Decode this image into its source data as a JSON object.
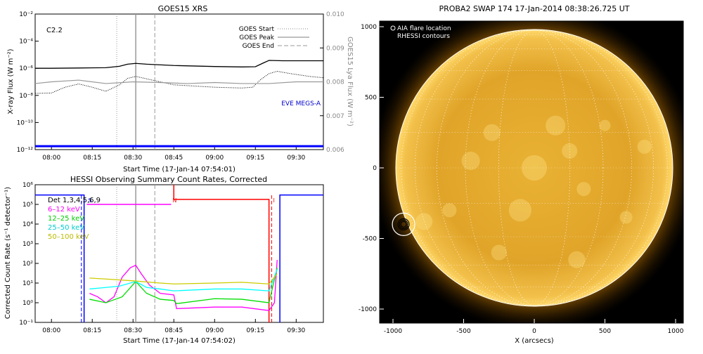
{
  "colors": {
    "goes_flux": "#000000",
    "lya": "#999999",
    "eve": "#0000ff",
    "attenuator": "#0000ff",
    "saa": "#ff0000",
    "black_band": "#000000",
    "e6_12": "#ff00ff",
    "e12_25": "#00dd00",
    "e25_50": "#00ffff",
    "e50_100": "#cccc00",
    "sun_limb": "#ffffff",
    "sun_core": "#ffd650",
    "sun_edge": "#e8a000"
  },
  "chart_data": [
    {
      "type": "line",
      "title": "GOES15 XRS",
      "xlabel": "Start Time (17-Jan-14 07:54:01)",
      "ylabel": "X-ray Flux (W m⁻²)",
      "y2label": "GOES15 Lya Flux (W m⁻²)",
      "x_range": [
        "07:54",
        "09:40"
      ],
      "x_ticks": [
        "08:00",
        "08:15",
        "08:30",
        "08:45",
        "09:00",
        "09:15",
        "09:30"
      ],
      "y_scale": "log",
      "ylim": [
        1e-12,
        0.01
      ],
      "y_ticks": [
        "10⁻¹²",
        "10⁻¹⁰",
        "10⁻⁸",
        "10⁻⁶",
        "10⁻⁴",
        "10⁻²"
      ],
      "y2lim": [
        0.006,
        0.01
      ],
      "y2_ticks": [
        "0.006",
        "0.007",
        "0.008",
        "0.009",
        "0.010"
      ],
      "annotation": "C2.2",
      "legend": [
        {
          "label": "GOES Start",
          "style": "dotted",
          "time": "08:24"
        },
        {
          "label": "GOES Peak",
          "style": "solid",
          "time": "08:31"
        },
        {
          "label": "GOES End",
          "style": "dashed",
          "time": "08:38"
        }
      ],
      "eve_label": "EVE MEGS-A",
      "series": [
        {
          "key": "long",
          "x": [
            "07:54",
            "08:00",
            "08:10",
            "08:20",
            "08:25",
            "08:28",
            "08:31",
            "08:35",
            "08:45",
            "09:00",
            "09:10",
            "09:15",
            "09:18",
            "09:20",
            "09:25",
            "09:40"
          ],
          "y": [
            1e-06,
            1e-06,
            1.05e-06,
            1.1e-06,
            1.4e-06,
            2e-06,
            2.3e-06,
            2e-06,
            1.6e-06,
            1.35e-06,
            1.25e-06,
            1.3e-06,
            2.5e-06,
            3.8e-06,
            3.6e-06,
            3.6e-06
          ]
        },
        {
          "key": "short",
          "x": [
            "07:54",
            "08:00",
            "08:05",
            "08:10",
            "08:15",
            "08:20",
            "08:25",
            "08:28",
            "08:31",
            "08:36",
            "08:45",
            "09:00",
            "09:10",
            "09:14",
            "09:17",
            "09:20",
            "09:23",
            "09:28",
            "09:35",
            "09:40"
          ],
          "y": [
            1.4e-08,
            1.5e-08,
            4e-08,
            7e-08,
            4e-08,
            2e-08,
            6e-08,
            1.8e-07,
            2.5e-07,
            1.5e-07,
            6e-08,
            4e-08,
            3.5e-08,
            4e-08,
            1.5e-07,
            4e-07,
            6e-07,
            4e-07,
            2.5e-07,
            2e-07
          ]
        },
        {
          "key": "lya",
          "x": [
            "07:54",
            "08:00",
            "08:10",
            "08:20",
            "08:30",
            "08:40",
            "08:50",
            "09:00",
            "09:10",
            "09:20",
            "09:30",
            "09:40"
          ],
          "y": [
            0.00795,
            0.008,
            0.00805,
            0.00795,
            0.008,
            0.00798,
            0.00795,
            0.00798,
            0.00795,
            0.00795,
            0.008,
            0.008
          ]
        },
        {
          "key": "eve",
          "x": [
            "07:54",
            "09:40"
          ],
          "y": [
            0.0061,
            0.0061
          ]
        }
      ]
    },
    {
      "type": "line",
      "title": "HESSI Observing Summary Count Rates, Corrected",
      "xlabel": "Start Time (17-Jan-14 07:54:02)",
      "ylabel": "Corrected Count Rate (s⁻¹ detector⁻¹)",
      "x_range": [
        "07:54",
        "09:40"
      ],
      "x_ticks": [
        "08:00",
        "08:15",
        "08:30",
        "08:45",
        "09:00",
        "09:15",
        "09:30"
      ],
      "y_scale": "log",
      "ylim": [
        0.1,
        1000000.0
      ],
      "y_ticks": [
        "10⁻¹",
        "10⁰",
        "10¹",
        "10²",
        "10³",
        "10⁴",
        "10⁵",
        "10⁶"
      ],
      "legend": [
        {
          "label": "Det 1,3,4,5,6,9",
          "color": "#000000"
        },
        {
          "label": "6–12 keV",
          "color": "#ff00ff"
        },
        {
          "label": "12–25 keV",
          "color": "#00dd00"
        },
        {
          "label": "25–50 keV",
          "color": "#00ffff"
        },
        {
          "label": "50–100 keV",
          "color": "#cccc00"
        }
      ],
      "markers": [
        {
          "text": "S",
          "time": "08:13"
        },
        {
          "text": "N",
          "time": "08:44"
        },
        {
          "text": "I",
          "time": "09:21"
        }
      ],
      "series": [
        {
          "name": "6–12 keV",
          "x": [
            "08:14",
            "08:17",
            "08:20",
            "08:23",
            "08:26",
            "08:29",
            "08:31",
            "08:33",
            "08:36",
            "08:40",
            "08:45",
            "08:46",
            "09:00",
            "09:10",
            "09:20",
            "09:22",
            "09:23"
          ],
          "y": [
            3,
            2,
            1,
            2,
            20,
            60,
            80,
            30,
            8,
            3,
            2.5,
            0.5,
            0.6,
            0.6,
            0.4,
            1,
            150
          ]
        },
        {
          "name": "12–25 keV",
          "x": [
            "08:14",
            "08:20",
            "08:26",
            "08:31",
            "08:35",
            "08:40",
            "08:45",
            "08:46",
            "09:00",
            "09:10",
            "09:20",
            "09:23"
          ],
          "y": [
            1.5,
            1,
            2,
            12,
            3,
            1.5,
            1.3,
            0.9,
            1.6,
            1.5,
            1,
            60
          ]
        },
        {
          "name": "25–50 keV",
          "x": [
            "08:14",
            "08:20",
            "08:25",
            "08:31",
            "08:35",
            "08:40",
            "08:45",
            "09:00",
            "09:10",
            "09:20",
            "09:23"
          ],
          "y": [
            5,
            6,
            7,
            12,
            6,
            5,
            4,
            5,
            5,
            4,
            50
          ]
        },
        {
          "name": "50–100 keV",
          "x": [
            "08:14",
            "08:20",
            "08:30",
            "08:40",
            "08:45",
            "09:00",
            "09:10",
            "09:20",
            "09:23"
          ],
          "y": [
            18,
            16,
            13,
            10,
            9,
            10,
            11,
            9,
            30
          ]
        }
      ]
    },
    {
      "type": "scatter",
      "title": "PROBA2 SWAP 174 17-Jan-2014 08:38:26.725 UT",
      "xlabel": "X (arcsecs)",
      "ylabel": "",
      "xlim": [
        -1100,
        1100
      ],
      "ylim": [
        -1100,
        1100
      ],
      "x_ticks": [
        -1000,
        -500,
        0,
        500,
        1000
      ],
      "y_ticks": [
        -1000,
        -500,
        0,
        500,
        1000
      ],
      "legend": [
        "AIA flare location",
        "RHESSI contours"
      ],
      "solar_radius": 975,
      "flare_location": {
        "x": -925,
        "y": -400
      }
    }
  ]
}
